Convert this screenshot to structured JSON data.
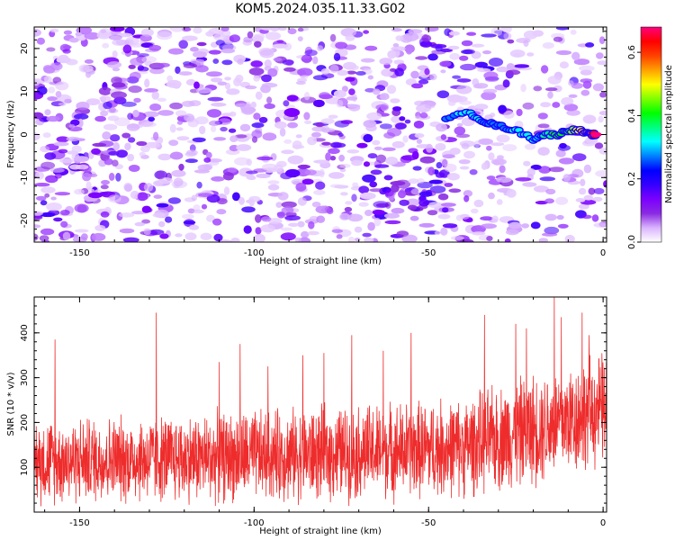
{
  "title": "KOM5.2024.035.11.33.G02",
  "chart_data": [
    {
      "type": "heatmap",
      "name": "spectrogram",
      "xlabel": "Height of straight line (km)",
      "ylabel": "Frequency (Hz)",
      "xlim": [
        -163,
        1
      ],
      "ylim": [
        -25,
        25
      ],
      "xticks": [
        "-150",
        "-100",
        "-50",
        "0"
      ],
      "xtick_values": [
        -150,
        -100,
        -50,
        0
      ],
      "yticks": [
        "-20",
        "-10",
        "0",
        "10",
        "20"
      ],
      "ytick_values": [
        -20,
        -10,
        0,
        10,
        20
      ],
      "colorbar": {
        "label": "Normalized spectral amplitude",
        "range": [
          0,
          0.68
        ],
        "ticks": [
          "0.0",
          "0.2",
          "0.4",
          "0.6"
        ],
        "tick_values": [
          0.0,
          0.2,
          0.4,
          0.6
        ],
        "colors": [
          "#ffffff",
          "#d9b3ff",
          "#8a2be2",
          "#7b00ff",
          "#3300ff",
          "#0000ff",
          "#0080ff",
          "#00ffff",
          "#00ff80",
          "#00ff00",
          "#80ff00",
          "#ffff00",
          "#ffa000",
          "#ff4000",
          "#ff0000",
          "#ff0080"
        ]
      },
      "signal_track": [
        {
          "x": -45,
          "y": 4,
          "amp": 0.26
        },
        {
          "x": -38,
          "y": 5,
          "amp": 0.33
        },
        {
          "x": -34,
          "y": 3,
          "amp": 0.28
        },
        {
          "x": -30,
          "y": 2,
          "amp": 0.27
        },
        {
          "x": -25,
          "y": 1,
          "amp": 0.3
        },
        {
          "x": -20,
          "y": -1,
          "amp": 0.32
        },
        {
          "x": -17,
          "y": 0,
          "amp": 0.35
        },
        {
          "x": -13,
          "y": 0,
          "amp": 0.42
        },
        {
          "x": -10,
          "y": 1,
          "amp": 0.4
        },
        {
          "x": -7,
          "y": 1,
          "amp": 0.5
        },
        {
          "x": -4,
          "y": 0,
          "amp": 0.58
        },
        {
          "x": -2,
          "y": 0,
          "amp": 0.66
        }
      ]
    },
    {
      "type": "line",
      "name": "snr",
      "xlabel": "Height of straight line (km)",
      "ylabel": "SNR (10 * v/v)",
      "xlim": [
        -163,
        1
      ],
      "ylim": [
        0,
        480
      ],
      "xticks": [
        "-150",
        "-100",
        "-50",
        "0"
      ],
      "xtick_values": [
        -150,
        -100,
        -50,
        0
      ],
      "yticks": [
        "100",
        "200",
        "300",
        "400"
      ],
      "ytick_values": [
        100,
        200,
        300,
        400
      ],
      "color": "#ee2c2c",
      "grid": false,
      "trend": [
        {
          "x": -163,
          "mean": 115,
          "spread": 90
        },
        {
          "x": -120,
          "mean": 120,
          "spread": 95
        },
        {
          "x": -80,
          "mean": 130,
          "spread": 100
        },
        {
          "x": -40,
          "mean": 145,
          "spread": 105
        },
        {
          "x": -20,
          "mean": 185,
          "spread": 120
        },
        {
          "x": 0,
          "mean": 230,
          "spread": 120
        }
      ],
      "peaks": [
        {
          "x": -157,
          "y": 385
        },
        {
          "x": -128,
          "y": 445
        },
        {
          "x": -110,
          "y": 335
        },
        {
          "x": -104,
          "y": 375
        },
        {
          "x": -96,
          "y": 325
        },
        {
          "x": -86,
          "y": 350
        },
        {
          "x": -80,
          "y": 355
        },
        {
          "x": -72,
          "y": 395
        },
        {
          "x": -63,
          "y": 360
        },
        {
          "x": -55,
          "y": 400
        },
        {
          "x": -34,
          "y": 440
        },
        {
          "x": -25,
          "y": 420
        },
        {
          "x": -22,
          "y": 410
        },
        {
          "x": -14,
          "y": 480
        },
        {
          "x": -12,
          "y": 435
        },
        {
          "x": -6,
          "y": 445
        },
        {
          "x": -4,
          "y": 395
        }
      ]
    }
  ]
}
